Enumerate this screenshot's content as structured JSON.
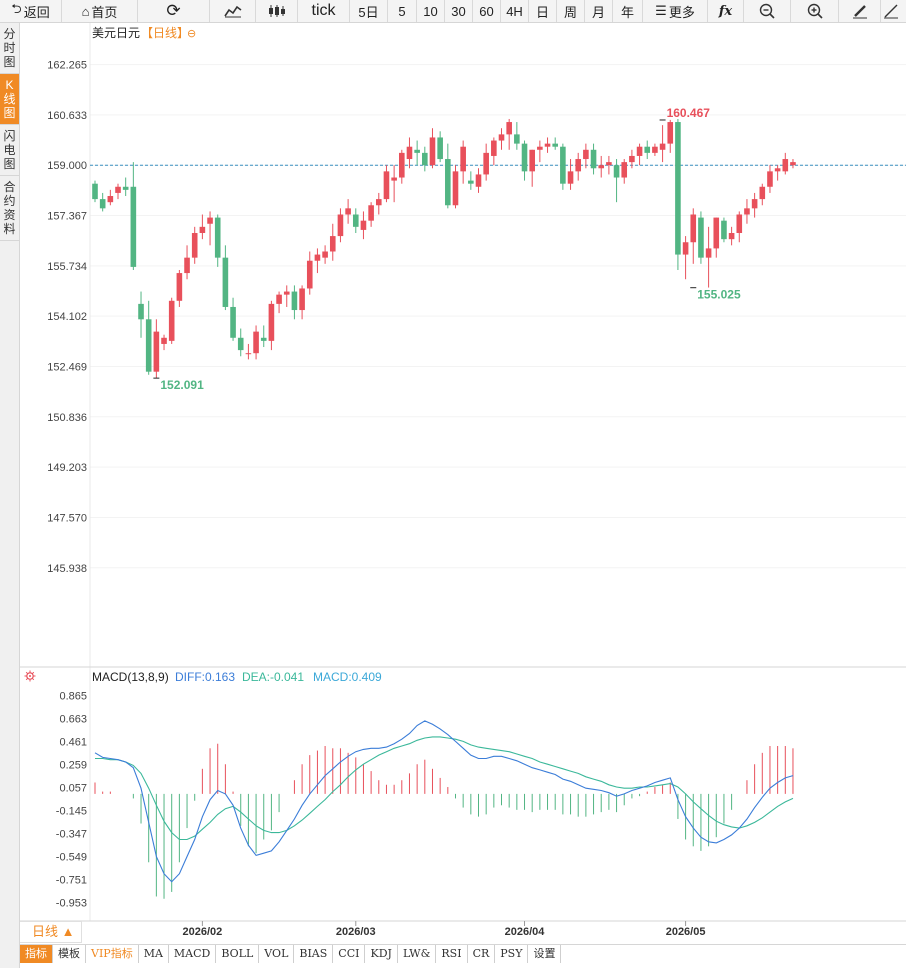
{
  "toolbar": {
    "back": "返回",
    "home": "首页",
    "tick": "tick",
    "five_day": "5日",
    "p5": "5",
    "p10": "10",
    "p30": "30",
    "p60": "60",
    "p4h": "4H",
    "day": "日",
    "week": "周",
    "month": "月",
    "year": "年",
    "more": "更多"
  },
  "sidebar": {
    "tabs": [
      "分时图",
      "K线图",
      "闪电图",
      "合约资料"
    ],
    "active_index": 1
  },
  "chart_header": {
    "symbol": "美元日元",
    "period": "【日线】",
    "period_icon": "⊖"
  },
  "macd_header": {
    "label": "MACD(13,8,9)",
    "diff": "DIFF:0.163",
    "dea": "DEA:-0.041",
    "macd": "MACD:0.409"
  },
  "bottom": {
    "period_tag": "日线 ▲",
    "indicator_tabs": [
      "指标",
      "模板",
      "VIP指标",
      "MA",
      "MACD",
      "BOLL",
      "VOL",
      "BIAS",
      "CCI",
      "KDJ",
      "LW&",
      "RSI",
      "CR",
      "PSY",
      "设置"
    ]
  },
  "colors": {
    "up": "#e8505b",
    "down": "#52b583",
    "diff": "#3b7dd8",
    "dea": "#3bb89a",
    "accent": "#f08a24",
    "dash": "#3a8fbf"
  },
  "chart_data": {
    "type": "candlestick",
    "title": "美元日元",
    "price_axis": {
      "ticks": [
        "162.265",
        "160.633",
        "159.000",
        "157.367",
        "155.734",
        "154.102",
        "152.469",
        "150.836",
        "149.203",
        "147.570",
        "145.938"
      ],
      "ylim": [
        144.6,
        162.9
      ]
    },
    "reference_price": 159.0,
    "annotations": [
      {
        "label": "152.091",
        "value": 152.091,
        "candle_index": 8,
        "type": "low"
      },
      {
        "label": "160.467",
        "value": 160.467,
        "candle_index": 74,
        "type": "high"
      },
      {
        "label": "155.025",
        "value": 155.025,
        "candle_index": 78,
        "type": "low"
      }
    ],
    "x_labels": [
      {
        "label": "2026/02",
        "candle_index": 14
      },
      {
        "label": "2026/03",
        "candle_index": 34
      },
      {
        "label": "2026/04",
        "candle_index": 56
      },
      {
        "label": "2026/05",
        "candle_index": 77
      }
    ],
    "candles": [
      [
        158.4,
        158.5,
        157.8,
        157.9
      ],
      [
        157.9,
        158.1,
        157.5,
        157.6
      ],
      [
        157.8,
        158.2,
        157.7,
        158.0
      ],
      [
        158.1,
        158.4,
        157.9,
        158.3
      ],
      [
        158.3,
        158.6,
        158.0,
        158.2
      ],
      [
        158.3,
        159.1,
        155.6,
        155.7
      ],
      [
        154.5,
        154.9,
        153.4,
        154.0
      ],
      [
        154.0,
        154.6,
        152.2,
        152.3
      ],
      [
        152.3,
        154.0,
        152.09,
        153.6
      ],
      [
        153.2,
        153.5,
        153.0,
        153.4
      ],
      [
        153.3,
        154.7,
        153.2,
        154.6
      ],
      [
        154.6,
        155.6,
        154.4,
        155.5
      ],
      [
        155.5,
        156.4,
        155.3,
        156.0
      ],
      [
        156.0,
        157.0,
        155.8,
        156.8
      ],
      [
        156.8,
        157.4,
        156.6,
        157.0
      ],
      [
        157.1,
        157.5,
        156.4,
        157.3
      ],
      [
        157.3,
        157.4,
        155.7,
        156.0
      ],
      [
        156.0,
        156.4,
        154.3,
        154.4
      ],
      [
        154.4,
        154.7,
        153.3,
        153.4
      ],
      [
        153.4,
        153.7,
        152.8,
        153.0
      ],
      [
        152.9,
        153.2,
        152.7,
        152.9
      ],
      [
        152.9,
        153.8,
        152.7,
        153.6
      ],
      [
        153.4,
        153.8,
        153.1,
        153.3
      ],
      [
        153.3,
        154.6,
        153.0,
        154.5
      ],
      [
        154.5,
        154.9,
        154.2,
        154.8
      ],
      [
        154.8,
        155.1,
        154.4,
        154.9
      ],
      [
        154.9,
        155.1,
        154.0,
        154.3
      ],
      [
        154.3,
        155.1,
        154.0,
        155.0
      ],
      [
        155.0,
        156.2,
        154.8,
        155.9
      ],
      [
        155.9,
        156.3,
        155.5,
        156.1
      ],
      [
        156.0,
        156.4,
        155.8,
        156.2
      ],
      [
        156.2,
        157.1,
        155.9,
        156.7
      ],
      [
        156.7,
        157.6,
        156.5,
        157.4
      ],
      [
        157.4,
        157.9,
        157.1,
        157.6
      ],
      [
        157.4,
        157.6,
        156.8,
        157.0
      ],
      [
        156.9,
        157.5,
        156.6,
        157.2
      ],
      [
        157.2,
        157.8,
        157.0,
        157.7
      ],
      [
        157.7,
        158.1,
        157.4,
        157.9
      ],
      [
        157.9,
        159.0,
        157.8,
        158.8
      ],
      [
        158.5,
        159.0,
        157.8,
        158.6
      ],
      [
        158.6,
        159.5,
        158.4,
        159.4
      ],
      [
        159.2,
        159.9,
        158.9,
        159.6
      ],
      [
        159.5,
        159.8,
        159.0,
        159.4
      ],
      [
        159.4,
        159.6,
        158.8,
        159.0
      ],
      [
        159.0,
        160.2,
        158.9,
        159.9
      ],
      [
        159.9,
        160.1,
        159.1,
        159.2
      ],
      [
        159.2,
        159.7,
        157.6,
        157.7
      ],
      [
        157.7,
        159.0,
        157.6,
        158.8
      ],
      [
        158.8,
        159.8,
        158.4,
        159.6
      ],
      [
        158.5,
        158.8,
        158.2,
        158.4
      ],
      [
        158.3,
        158.9,
        158.1,
        158.7
      ],
      [
        158.7,
        159.7,
        158.5,
        159.4
      ],
      [
        159.3,
        159.9,
        159.0,
        159.8
      ],
      [
        159.8,
        160.2,
        159.5,
        160.0
      ],
      [
        160.0,
        160.5,
        159.5,
        160.4
      ],
      [
        160.0,
        160.4,
        159.5,
        159.7
      ],
      [
        159.7,
        159.8,
        158.5,
        158.8
      ],
      [
        158.8,
        159.5,
        158.3,
        159.5
      ],
      [
        159.5,
        159.8,
        159.1,
        159.6
      ],
      [
        159.6,
        159.9,
        159.4,
        159.7
      ],
      [
        159.7,
        159.9,
        159.5,
        159.6
      ],
      [
        159.6,
        159.7,
        158.2,
        158.4
      ],
      [
        158.4,
        159.2,
        158.2,
        158.8
      ],
      [
        158.8,
        159.4,
        158.5,
        159.2
      ],
      [
        159.2,
        159.7,
        158.9,
        159.5
      ],
      [
        159.5,
        159.7,
        158.7,
        158.9
      ],
      [
        158.9,
        159.3,
        158.6,
        159.0
      ],
      [
        159.0,
        159.3,
        158.7,
        159.1
      ],
      [
        159.0,
        159.2,
        157.8,
        158.6
      ],
      [
        158.6,
        159.2,
        158.4,
        159.1
      ],
      [
        159.1,
        159.5,
        158.9,
        159.3
      ],
      [
        159.3,
        159.7,
        159.0,
        159.6
      ],
      [
        159.6,
        159.8,
        159.2,
        159.4
      ],
      [
        159.4,
        159.7,
        159.3,
        159.6
      ],
      [
        159.5,
        160.3,
        159.1,
        159.7
      ],
      [
        159.7,
        160.47,
        159.4,
        160.4
      ],
      [
        160.4,
        160.5,
        155.6,
        156.1
      ],
      [
        156.1,
        156.7,
        155.3,
        156.5
      ],
      [
        156.5,
        157.6,
        155.8,
        157.4
      ],
      [
        157.3,
        157.5,
        155.8,
        156.0
      ],
      [
        156.0,
        157.0,
        155.03,
        156.3
      ],
      [
        156.3,
        157.3,
        156.0,
        157.3
      ],
      [
        157.2,
        157.3,
        156.5,
        156.6
      ],
      [
        156.6,
        157.0,
        156.4,
        156.8
      ],
      [
        156.8,
        157.5,
        156.5,
        157.4
      ],
      [
        157.4,
        157.9,
        157.1,
        157.6
      ],
      [
        157.6,
        158.1,
        157.3,
        157.9
      ],
      [
        157.9,
        158.4,
        157.7,
        158.3
      ],
      [
        158.3,
        159.0,
        158.1,
        158.8
      ],
      [
        158.8,
        159.0,
        158.5,
        158.9
      ],
      [
        158.8,
        159.4,
        158.7,
        159.2
      ],
      [
        159.0,
        159.2,
        158.9,
        159.1
      ]
    ],
    "macd": {
      "axis_ticks": [
        "0.865",
        "0.663",
        "0.461",
        "0.259",
        "0.057",
        "-0.145",
        "-0.347",
        "-0.549",
        "-0.751",
        "-0.953"
      ],
      "ylim": [
        -1.08,
        0.92
      ],
      "diff": [
        0.36,
        0.32,
        0.31,
        0.3,
        0.28,
        0.23,
        0.05,
        -0.25,
        -0.55,
        -0.7,
        -0.77,
        -0.7,
        -0.55,
        -0.4,
        -0.2,
        -0.05,
        0.03,
        0.0,
        -0.1,
        -0.3,
        -0.45,
        -0.54,
        -0.52,
        -0.5,
        -0.42,
        -0.32,
        -0.22,
        -0.1,
        0.0,
        0.08,
        0.16,
        0.22,
        0.28,
        0.33,
        0.37,
        0.39,
        0.4,
        0.4,
        0.41,
        0.44,
        0.48,
        0.53,
        0.6,
        0.64,
        0.61,
        0.57,
        0.52,
        0.46,
        0.4,
        0.34,
        0.31,
        0.31,
        0.33,
        0.33,
        0.31,
        0.29,
        0.26,
        0.23,
        0.21,
        0.19,
        0.17,
        0.13,
        0.11,
        0.08,
        0.05,
        0.04,
        0.03,
        0.01,
        -0.02,
        0.0,
        0.03,
        0.05,
        0.07,
        0.1,
        0.12,
        0.14,
        -0.05,
        -0.2,
        -0.3,
        -0.38,
        -0.42,
        -0.43,
        -0.4,
        -0.36,
        -0.3,
        -0.22,
        -0.12,
        -0.03,
        0.05,
        0.1,
        0.14,
        0.16
      ],
      "dea": [
        0.31,
        0.31,
        0.3,
        0.3,
        0.28,
        0.25,
        0.18,
        0.05,
        -0.1,
        -0.24,
        -0.34,
        -0.4,
        -0.4,
        -0.37,
        -0.31,
        -0.25,
        -0.18,
        -0.13,
        -0.11,
        -0.16,
        -0.22,
        -0.28,
        -0.32,
        -0.34,
        -0.34,
        -0.32,
        -0.28,
        -0.23,
        -0.17,
        -0.11,
        -0.05,
        0.02,
        0.08,
        0.15,
        0.21,
        0.26,
        0.3,
        0.34,
        0.37,
        0.4,
        0.42,
        0.44,
        0.47,
        0.49,
        0.5,
        0.5,
        0.49,
        0.48,
        0.46,
        0.43,
        0.41,
        0.4,
        0.39,
        0.38,
        0.37,
        0.35,
        0.33,
        0.31,
        0.28,
        0.26,
        0.24,
        0.22,
        0.2,
        0.18,
        0.15,
        0.13,
        0.11,
        0.08,
        0.06,
        0.05,
        0.05,
        0.06,
        0.06,
        0.07,
        0.08,
        0.09,
        0.06,
        0.0,
        -0.07,
        -0.13,
        -0.19,
        -0.24,
        -0.27,
        -0.29,
        -0.3,
        -0.28,
        -0.25,
        -0.21,
        -0.16,
        -0.11,
        -0.07,
        -0.04
      ],
      "hist": [
        0.1,
        0.02,
        0.02,
        0.0,
        0.0,
        -0.04,
        -0.26,
        -0.6,
        -0.9,
        -0.92,
        -0.86,
        -0.6,
        -0.3,
        -0.06,
        0.22,
        0.4,
        0.44,
        0.26,
        0.02,
        -0.28,
        -0.46,
        -0.52,
        -0.4,
        -0.32,
        -0.16,
        0.0,
        0.12,
        0.26,
        0.34,
        0.38,
        0.42,
        0.4,
        0.4,
        0.36,
        0.32,
        0.26,
        0.2,
        0.12,
        0.08,
        0.08,
        0.12,
        0.18,
        0.26,
        0.3,
        0.22,
        0.14,
        0.06,
        -0.04,
        -0.12,
        -0.18,
        -0.2,
        -0.18,
        -0.12,
        -0.1,
        -0.12,
        -0.14,
        -0.14,
        -0.16,
        -0.14,
        -0.14,
        -0.14,
        -0.18,
        -0.18,
        -0.2,
        -0.2,
        -0.18,
        -0.16,
        -0.14,
        -0.16,
        -0.1,
        -0.04,
        -0.02,
        0.02,
        0.06,
        0.08,
        0.1,
        -0.22,
        -0.4,
        -0.46,
        -0.5,
        -0.46,
        -0.38,
        -0.26,
        -0.14,
        0.0,
        0.12,
        0.26,
        0.36,
        0.42,
        0.42,
        0.42,
        0.4
      ]
    }
  }
}
